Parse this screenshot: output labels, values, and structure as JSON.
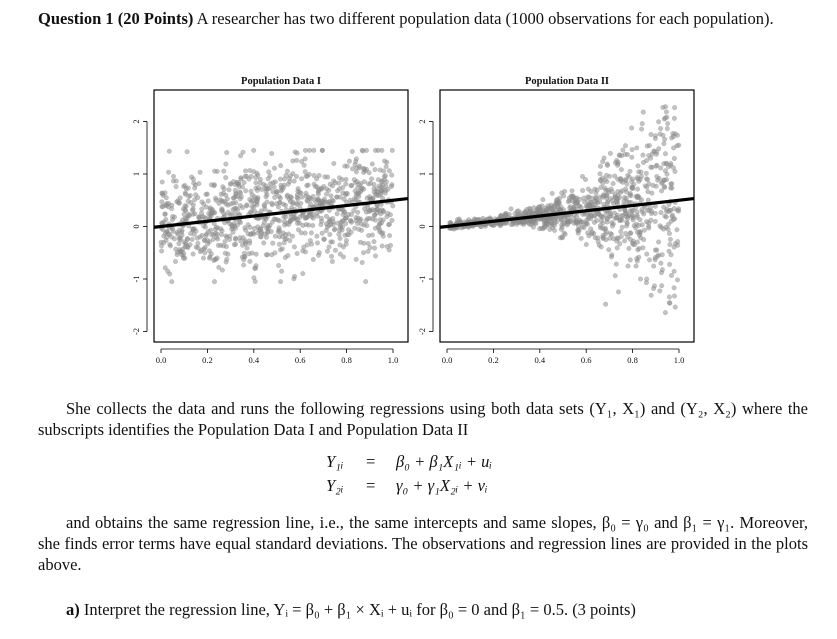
{
  "question": {
    "label": "Question 1 (20 Points)",
    "intro": " A researcher has two different population data (1000 observations for each population)."
  },
  "chart_data": [
    {
      "type": "scatter",
      "title": "Population Data I",
      "xlim": [
        0,
        1
      ],
      "ylim": [
        -2.2,
        2.6
      ],
      "x_ticks": [
        "0.0",
        "0.2",
        "0.4",
        "0.6",
        "0.8",
        "1.0"
      ],
      "y_ticks": [
        "-2",
        "-1",
        "0",
        "1",
        "2"
      ],
      "regression_line": {
        "intercept": 0,
        "slope": 0.5
      },
      "pattern": "homoscedastic",
      "point_color": "#8f8f8f"
    },
    {
      "type": "scatter",
      "title": "Population Data II",
      "xlim": [
        0,
        1
      ],
      "ylim": [
        -2.2,
        2.6
      ],
      "x_ticks": [
        "0.0",
        "0.2",
        "0.4",
        "0.6",
        "0.8",
        "1.0"
      ],
      "y_ticks": [
        "-2",
        "-1",
        "0",
        "1",
        "2"
      ],
      "regression_line": {
        "intercept": 0,
        "slope": 0.5
      },
      "pattern": "heteroscedastic-increasing",
      "point_color": "#8f8f8f"
    }
  ],
  "paragraph1": "She collects the data and runs the following regressions using both data sets (Y₁, X₁) and (Y₂, X₂) where the subscripts identifies the Population Data I and Population Data II",
  "equations": [
    {
      "lhs": "Y₁ᵢ",
      "eq": "=",
      "rhs": "β₀ + β₁X₁ᵢ + uᵢ"
    },
    {
      "lhs": "Y₂ᵢ",
      "eq": "=",
      "rhs": "γ₀ + γ₁X₂ᵢ + vᵢ"
    }
  ],
  "paragraph2": "and obtains the same regression line, i.e., the same intercepts and same slopes, β₀ = γ₀ and β₁ = γ₁. Moreover, she finds error terms have equal standard deviations. The observations and regression lines are provided in the plots above.",
  "part_a": {
    "label": "a)",
    "text": " Interpret the regression line, Yᵢ = β₀ + β₁ × Xᵢ + uᵢ for β₀ = 0 and β₁ = 0.5. (3 points)"
  }
}
